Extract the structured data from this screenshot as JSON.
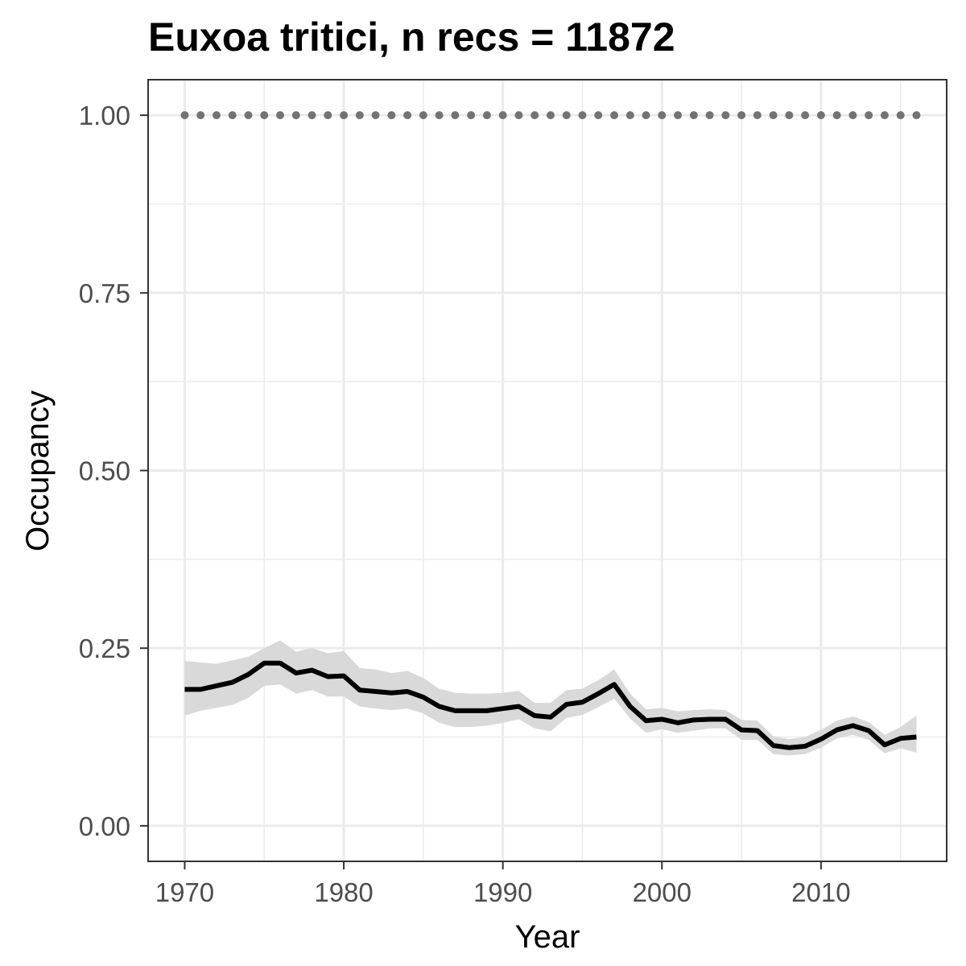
{
  "chart_data": {
    "type": "line",
    "title": "Euxoa tritici, n recs = 11872",
    "xlabel": "Year",
    "ylabel": "Occupancy",
    "xlim": [
      1967.7,
      2017.9
    ],
    "ylim": [
      -0.05,
      1.05
    ],
    "x_ticks": [
      1970,
      1980,
      1990,
      2000,
      2010
    ],
    "x_tick_labels": [
      "1970",
      "1980",
      "1990",
      "2000",
      "2010"
    ],
    "y_ticks": [
      0,
      0.25,
      0.5,
      0.75,
      1.0
    ],
    "y_tick_labels": [
      "0.00",
      "0.25",
      "0.50",
      "0.75",
      "1.00"
    ],
    "grid": true,
    "series": [
      {
        "kind": "line",
        "color": "#000000",
        "x": [
          1970,
          1971,
          1972,
          1973,
          1974,
          1975,
          1976,
          1977,
          1978,
          1979,
          1980,
          1981,
          1982,
          1983,
          1984,
          1985,
          1986,
          1987,
          1988,
          1989,
          1990,
          1991,
          1992,
          1993,
          1994,
          1995,
          1996,
          1997,
          1998,
          1999,
          2000,
          2001,
          2002,
          2003,
          2004,
          2005,
          2006,
          2007,
          2008,
          2009,
          2010,
          2011,
          2012,
          2013,
          2014,
          2015,
          2016
        ],
        "y": [
          0.192,
          0.192,
          0.197,
          0.202,
          0.213,
          0.229,
          0.229,
          0.215,
          0.219,
          0.21,
          0.211,
          0.191,
          0.189,
          0.187,
          0.189,
          0.181,
          0.168,
          0.162,
          0.162,
          0.162,
          0.165,
          0.168,
          0.155,
          0.153,
          0.171,
          0.174,
          0.186,
          0.199,
          0.168,
          0.148,
          0.15,
          0.145,
          0.149,
          0.15,
          0.15,
          0.135,
          0.134,
          0.113,
          0.11,
          0.112,
          0.122,
          0.135,
          0.141,
          0.134,
          0.114,
          0.123,
          0.125
        ]
      },
      {
        "kind": "ribbon",
        "color": "#d9d9d9",
        "x": [
          1970,
          1971,
          1972,
          1973,
          1974,
          1975,
          1976,
          1977,
          1978,
          1979,
          1980,
          1981,
          1982,
          1983,
          1984,
          1985,
          1986,
          1987,
          1988,
          1989,
          1990,
          1991,
          1992,
          1993,
          1994,
          1995,
          1996,
          1997,
          1998,
          1999,
          2000,
          2001,
          2002,
          2003,
          2004,
          2005,
          2006,
          2007,
          2008,
          2009,
          2010,
          2011,
          2012,
          2013,
          2014,
          2015,
          2016
        ],
        "lower": [
          0.155,
          0.162,
          0.166,
          0.17,
          0.18,
          0.197,
          0.199,
          0.186,
          0.191,
          0.182,
          0.182,
          0.168,
          0.165,
          0.163,
          0.165,
          0.158,
          0.145,
          0.139,
          0.139,
          0.141,
          0.145,
          0.15,
          0.137,
          0.133,
          0.152,
          0.156,
          0.167,
          0.179,
          0.151,
          0.131,
          0.136,
          0.131,
          0.134,
          0.137,
          0.137,
          0.121,
          0.121,
          0.101,
          0.099,
          0.101,
          0.11,
          0.123,
          0.128,
          0.121,
          0.102,
          0.109,
          0.103
        ],
        "upper": [
          0.232,
          0.23,
          0.228,
          0.233,
          0.238,
          0.25,
          0.261,
          0.245,
          0.25,
          0.243,
          0.246,
          0.222,
          0.22,
          0.215,
          0.218,
          0.208,
          0.193,
          0.187,
          0.186,
          0.186,
          0.187,
          0.19,
          0.173,
          0.173,
          0.191,
          0.193,
          0.205,
          0.22,
          0.186,
          0.164,
          0.166,
          0.161,
          0.163,
          0.164,
          0.163,
          0.149,
          0.148,
          0.126,
          0.122,
          0.125,
          0.135,
          0.148,
          0.154,
          0.146,
          0.128,
          0.139,
          0.155
        ]
      },
      {
        "kind": "points",
        "color": "#737373",
        "x": [
          1970,
          1971,
          1972,
          1973,
          1974,
          1975,
          1976,
          1977,
          1978,
          1979,
          1980,
          1981,
          1982,
          1983,
          1984,
          1985,
          1986,
          1987,
          1988,
          1989,
          1990,
          1991,
          1992,
          1993,
          1994,
          1995,
          1996,
          1997,
          1998,
          1999,
          2000,
          2001,
          2002,
          2003,
          2004,
          2005,
          2006,
          2007,
          2008,
          2009,
          2010,
          2011,
          2012,
          2013,
          2014,
          2015,
          2016
        ],
        "y": [
          1,
          1,
          1,
          1,
          1,
          1,
          1,
          1,
          1,
          1,
          1,
          1,
          1,
          1,
          1,
          1,
          1,
          1,
          1,
          1,
          1,
          1,
          1,
          1,
          1,
          1,
          1,
          1,
          1,
          1,
          1,
          1,
          1,
          1,
          1,
          1,
          1,
          1,
          1,
          1,
          1,
          1,
          1,
          1,
          1,
          1,
          1
        ]
      }
    ]
  }
}
